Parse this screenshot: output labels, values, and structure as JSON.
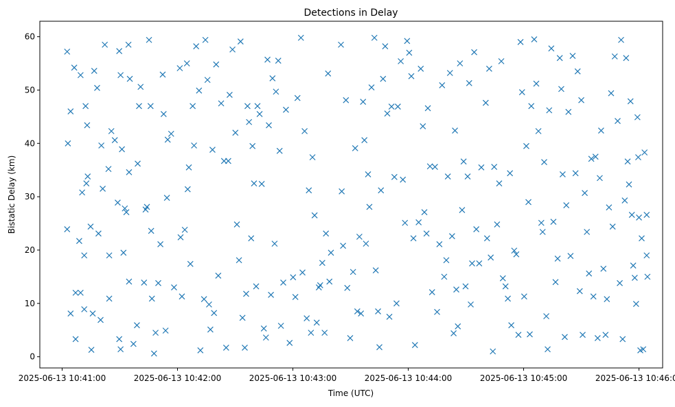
{
  "chart_data": {
    "type": "scatter",
    "title": "Detections in Delay",
    "xlabel": "Time (UTC)",
    "ylabel": "Bistatic Delay (km)",
    "x_base": "2025-06-13 10:41:00",
    "x_units": "seconds after 2025-06-13 10:41:00",
    "xlim": [
      -11.6,
      312.3
    ],
    "ylim": [
      -2.1,
      62.9
    ],
    "grid": false,
    "marker": "x",
    "color": "#1f77b4",
    "x_ticks": [
      0,
      60,
      120,
      180,
      240,
      300
    ],
    "x_tick_labels": [
      "2025-06-13 10:41:00",
      "2025-06-13 10:42:00",
      "2025-06-13 10:43:00",
      "2025-06-13 10:44:00",
      "2025-06-13 10:45:00",
      "2025-06-13 10:46:00"
    ],
    "y_ticks": [
      0,
      10,
      20,
      30,
      40,
      50,
      60
    ],
    "y_tick_labels": [
      "0",
      "10",
      "20",
      "30",
      "40",
      "50",
      "60"
    ],
    "points": [
      [
        2.6,
        57.2
      ],
      [
        3,
        40
      ],
      [
        2.6,
        23.9
      ],
      [
        4.4,
        46
      ],
      [
        6.3,
        54.2
      ],
      [
        7,
        12
      ],
      [
        8.9,
        21.7
      ],
      [
        9.6,
        52.8
      ],
      [
        4.4,
        8.1
      ],
      [
        7,
        3.3
      ],
      [
        12.2,
        47
      ],
      [
        13,
        43.4
      ],
      [
        12.6,
        32.5
      ],
      [
        13.3,
        33.8
      ],
      [
        15.2,
        1.3
      ],
      [
        15.9,
        8.1
      ],
      [
        14.8,
        24.4
      ],
      [
        11.5,
        19
      ],
      [
        10.4,
        30.8
      ],
      [
        11.5,
        8.9
      ],
      [
        9.6,
        12
      ],
      [
        16.7,
        53.6
      ],
      [
        18.2,
        50.4
      ],
      [
        18.9,
        23.1
      ],
      [
        20,
        6.9
      ],
      [
        20.4,
        39.6
      ],
      [
        21.1,
        31.5
      ],
      [
        22.2,
        58.5
      ],
      [
        24.1,
        35.2
      ],
      [
        24.5,
        10.9
      ],
      [
        24.5,
        19
      ],
      [
        25.6,
        42.3
      ],
      [
        27.4,
        40.6
      ],
      [
        28.9,
        28.9
      ],
      [
        29.7,
        57.3
      ],
      [
        30.4,
        52.8
      ],
      [
        31.1,
        38.9
      ],
      [
        31.9,
        19.5
      ],
      [
        32.6,
        27.8
      ],
      [
        33.4,
        27.1
      ],
      [
        34.5,
        58.5
      ],
      [
        34.8,
        34.6
      ],
      [
        34.8,
        14.1
      ],
      [
        35.2,
        52.1
      ],
      [
        30.4,
        1.4
      ],
      [
        29.7,
        3.3
      ],
      [
        37.1,
        2.4
      ],
      [
        38.9,
        5.9
      ],
      [
        39.3,
        36.2
      ],
      [
        40,
        47
      ],
      [
        40.8,
        50.6
      ],
      [
        42.6,
        13.9
      ],
      [
        43.4,
        27.6
      ],
      [
        44.1,
        28.1
      ],
      [
        45.2,
        59.4
      ],
      [
        46,
        47
      ],
      [
        46.3,
        23.6
      ],
      [
        46.7,
        10.9
      ],
      [
        47.8,
        0.6
      ],
      [
        48.6,
        4.5
      ],
      [
        50,
        13.8
      ],
      [
        51.1,
        21.1
      ],
      [
        52.3,
        52.9
      ],
      [
        52.8,
        45.5
      ],
      [
        53.8,
        4.9
      ],
      [
        54.5,
        29.8
      ],
      [
        54.9,
        40.7
      ],
      [
        56.7,
        41.8
      ],
      [
        58.2,
        13
      ],
      [
        61.2,
        54.1
      ],
      [
        61.6,
        22.4
      ],
      [
        62.3,
        11.3
      ],
      [
        63.8,
        23.8
      ],
      [
        64.9,
        55
      ],
      [
        65.3,
        31.4
      ],
      [
        65.9,
        35.5
      ],
      [
        66.7,
        17.4
      ],
      [
        67.9,
        47
      ],
      [
        68.6,
        39.6
      ],
      [
        69.7,
        58.2
      ],
      [
        71.2,
        49.9
      ],
      [
        71.9,
        1.2
      ],
      [
        73.8,
        10.8
      ],
      [
        74.5,
        59.4
      ],
      [
        75.6,
        51.9
      ],
      [
        76.4,
        9.8
      ],
      [
        77.1,
        5.1
      ],
      [
        78.2,
        38.8
      ],
      [
        79,
        8.2
      ],
      [
        80.1,
        54.8
      ],
      [
        81.2,
        15.2
      ],
      [
        82.7,
        47.5
      ],
      [
        84.2,
        36.7
      ],
      [
        85.3,
        1.7
      ],
      [
        86.4,
        36.7
      ],
      [
        87.1,
        49.1
      ],
      [
        88.6,
        57.6
      ],
      [
        90.1,
        42
      ],
      [
        90.9,
        24.8
      ],
      [
        92,
        18.1
      ],
      [
        92.8,
        59.1
      ],
      [
        93.8,
        7.3
      ],
      [
        95,
        1.7
      ],
      [
        95.7,
        11.8
      ],
      [
        96.4,
        47
      ],
      [
        97.2,
        44
      ],
      [
        98.3,
        22.2
      ],
      [
        99,
        39.5
      ],
      [
        99.8,
        32.5
      ],
      [
        100.9,
        13.2
      ],
      [
        101.6,
        47
      ],
      [
        102.7,
        45.5
      ],
      [
        103.8,
        32.4
      ],
      [
        104.9,
        5.3
      ],
      [
        106,
        3.6
      ],
      [
        106.8,
        55.7
      ],
      [
        107.5,
        43.4
      ],
      [
        108.6,
        11.6
      ],
      [
        109.4,
        52.2
      ],
      [
        110.5,
        21.2
      ],
      [
        111.2,
        49.7
      ],
      [
        112.4,
        55.5
      ],
      [
        113.1,
        38.6
      ],
      [
        113.8,
        5.8
      ],
      [
        115,
        13.9
      ],
      [
        116.4,
        46.3
      ],
      [
        118.3,
        2.6
      ],
      [
        120.1,
        14.9
      ],
      [
        121.3,
        11.2
      ],
      [
        122.4,
        48.5
      ],
      [
        124.2,
        59.8
      ],
      [
        125,
        15.8
      ],
      [
        126.1,
        42.3
      ],
      [
        127.2,
        7.2
      ],
      [
        128.3,
        31.2
      ],
      [
        129.4,
        4.5
      ],
      [
        130.2,
        37.4
      ],
      [
        131.3,
        26.5
      ],
      [
        132.4,
        6.4
      ],
      [
        133.5,
        13
      ],
      [
        134.2,
        13.4
      ],
      [
        135.3,
        17.6
      ],
      [
        136.5,
        4.5
      ],
      [
        137.2,
        23.1
      ],
      [
        138.3,
        53.1
      ],
      [
        139,
        14.1
      ],
      [
        139.8,
        19.5
      ],
      [
        145,
        58.5
      ],
      [
        145.4,
        31
      ],
      [
        146.1,
        20.8
      ],
      [
        147.6,
        48.1
      ],
      [
        148.3,
        12.9
      ],
      [
        149.8,
        3.5
      ],
      [
        151.3,
        15.9
      ],
      [
        152.4,
        39.1
      ],
      [
        153.5,
        8.5
      ],
      [
        154.6,
        22.5
      ],
      [
        155.4,
        8.1
      ],
      [
        156.5,
        47.8
      ],
      [
        157.2,
        40.6
      ],
      [
        158,
        21.2
      ],
      [
        159.1,
        34.2
      ],
      [
        159.8,
        28.1
      ],
      [
        160.9,
        50.5
      ],
      [
        162.4,
        59.8
      ],
      [
        163.1,
        16.2
      ],
      [
        164.3,
        8.5
      ],
      [
        165,
        1.8
      ],
      [
        165.8,
        31.2
      ],
      [
        166.9,
        52.1
      ],
      [
        168,
        58.2
      ],
      [
        169.1,
        45.6
      ],
      [
        170.2,
        7.5
      ],
      [
        171.3,
        46.9
      ],
      [
        172.8,
        33.7
      ],
      [
        173.9,
        10
      ],
      [
        174.6,
        46.9
      ],
      [
        176.1,
        55.4
      ],
      [
        177.2,
        33.2
      ],
      [
        178.3,
        25.1
      ],
      [
        179.4,
        59.2
      ],
      [
        180.5,
        57
      ],
      [
        181.6,
        52.6
      ],
      [
        182.7,
        22.2
      ],
      [
        183.5,
        2.2
      ],
      [
        185.4,
        25.2
      ],
      [
        186.5,
        54
      ],
      [
        187.6,
        43.2
      ],
      [
        188.4,
        27.1
      ],
      [
        189.5,
        23.1
      ],
      [
        190.2,
        46.6
      ],
      [
        191.3,
        35.7
      ],
      [
        192.4,
        12.1
      ],
      [
        193.9,
        35.6
      ],
      [
        195,
        8.4
      ],
      [
        196.2,
        21.1
      ],
      [
        197.6,
        50.9
      ],
      [
        198.7,
        15
      ],
      [
        199.8,
        18.1
      ],
      [
        200.6,
        33.8
      ],
      [
        201.7,
        53.2
      ],
      [
        202.8,
        22.6
      ],
      [
        203.6,
        4.4
      ],
      [
        204.3,
        42.4
      ],
      [
        205,
        12.6
      ],
      [
        205.8,
        5.7
      ],
      [
        206.9,
        55
      ],
      [
        208,
        27.5
      ],
      [
        208.8,
        36.6
      ],
      [
        209.8,
        13.2
      ],
      [
        210.9,
        33.8
      ],
      [
        211.7,
        51.3
      ],
      [
        212.5,
        9.8
      ],
      [
        213.2,
        17.5
      ],
      [
        214.3,
        57.1
      ],
      [
        215.4,
        23.9
      ],
      [
        216.9,
        17.5
      ],
      [
        218,
        35.5
      ],
      [
        220.3,
        47.6
      ],
      [
        221,
        22.2
      ],
      [
        222.1,
        54
      ],
      [
        222.9,
        18.6
      ],
      [
        224,
        1
      ],
      [
        224.7,
        35.6
      ],
      [
        226.2,
        24.8
      ],
      [
        227.3,
        32.5
      ],
      [
        228.4,
        55.4
      ],
      [
        229.2,
        14.7
      ],
      [
        230.6,
        13.2
      ],
      [
        231.8,
        10.9
      ],
      [
        232.9,
        34.4
      ],
      [
        233.6,
        5.9
      ],
      [
        235.1,
        19.9
      ],
      [
        236.2,
        19.2
      ],
      [
        237.3,
        4.1
      ],
      [
        238.4,
        59
      ],
      [
        239.2,
        49.6
      ],
      [
        240.3,
        11.3
      ],
      [
        241.4,
        39.5
      ],
      [
        242.5,
        29
      ],
      [
        243.2,
        4.2
      ],
      [
        244,
        47
      ],
      [
        245.5,
        59.5
      ],
      [
        246.6,
        51.2
      ],
      [
        247.7,
        42.3
      ],
      [
        249.2,
        25.1
      ],
      [
        249.9,
        23.4
      ],
      [
        250.7,
        36.5
      ],
      [
        251.8,
        7.6
      ],
      [
        252.5,
        1.4
      ],
      [
        253.3,
        46.2
      ],
      [
        254.4,
        57.8
      ],
      [
        255.5,
        25.3
      ],
      [
        256.6,
        14
      ],
      [
        257.7,
        18.4
      ],
      [
        258.8,
        56
      ],
      [
        259.6,
        50.2
      ],
      [
        260.3,
        34.2
      ],
      [
        261.4,
        3.7
      ],
      [
        262.2,
        28.4
      ],
      [
        263.3,
        45.9
      ],
      [
        264.4,
        18.9
      ],
      [
        265.5,
        56.4
      ],
      [
        267,
        34.4
      ],
      [
        268.1,
        53.5
      ],
      [
        269.2,
        12.3
      ],
      [
        270,
        48.1
      ],
      [
        270.7,
        4.1
      ],
      [
        271.8,
        30.7
      ],
      [
        272.9,
        23.4
      ],
      [
        274,
        15.6
      ],
      [
        275.2,
        37.1
      ],
      [
        276.3,
        11.3
      ],
      [
        277.4,
        37.5
      ],
      [
        278.5,
        3.5
      ],
      [
        279.6,
        33.5
      ],
      [
        280.3,
        42.4
      ],
      [
        281.5,
        16.5
      ],
      [
        282.6,
        4.1
      ],
      [
        283.3,
        10.8
      ],
      [
        284.4,
        28
      ],
      [
        285.5,
        49.4
      ],
      [
        286.3,
        24.4
      ],
      [
        287.4,
        56.3
      ],
      [
        288.9,
        44.2
      ],
      [
        290,
        13.8
      ],
      [
        290.7,
        59.4
      ],
      [
        291.5,
        3.3
      ],
      [
        292.6,
        29.3
      ],
      [
        293.3,
        56
      ],
      [
        294.1,
        36.6
      ],
      [
        294.8,
        32.3
      ],
      [
        295.6,
        47.9
      ],
      [
        296.3,
        26.6
      ],
      [
        297,
        17.1
      ],
      [
        297.8,
        14.8
      ],
      [
        298.5,
        9.9
      ],
      [
        299.2,
        44.9
      ],
      [
        299.6,
        37.4
      ],
      [
        300,
        26.1
      ],
      [
        300.7,
        1.2
      ],
      [
        301.4,
        22.2
      ],
      [
        302.2,
        1.4
      ],
      [
        302.9,
        38.3
      ],
      [
        304,
        19
      ],
      [
        304,
        26.6
      ],
      [
        304.4,
        15
      ]
    ]
  }
}
